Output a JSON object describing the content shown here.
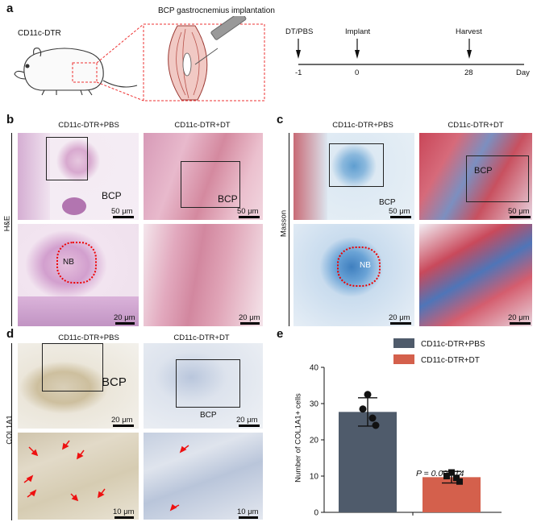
{
  "panel_a": {
    "letter": "a",
    "mouse_label": "CD11c-DTR",
    "implant_title": "BCP gastrocnemius implantation",
    "timeline": {
      "events": [
        {
          "label": "DT/PBS",
          "tick": "-1"
        },
        {
          "label": "Implant",
          "tick": "0"
        },
        {
          "label": "Harvest",
          "tick": "28"
        }
      ],
      "unit": "Day"
    }
  },
  "panel_b": {
    "letter": "b",
    "row_label": "H&E",
    "col1": "CD11c-DTR+PBS",
    "col2": "CD11c-DTR+DT",
    "bcp1": "BCP",
    "bcp2": "BCP",
    "nb": "NB",
    "scale_top": "50 μm",
    "scale_bottom": "20 μm"
  },
  "panel_c": {
    "letter": "c",
    "row_label": "Masson",
    "col1": "CD11c-DTR+PBS",
    "col2": "CD11c-DTR+DT",
    "bcp1": "BCP",
    "bcp2": "BCP",
    "nb": "NB",
    "scale_top": "50 μm",
    "scale_bottom": "20 μm"
  },
  "panel_d": {
    "letter": "d",
    "row_label": "COL1A1",
    "col1": "CD11c-DTR+PBS",
    "col2": "CD11c-DTR+DT",
    "bcp1": "BCP",
    "bcp2": "BCP",
    "scale_top": "20 μm",
    "scale_bottom": "10 μm"
  },
  "panel_e": {
    "letter": "e",
    "p_value": "P = 0.000 14"
  },
  "chart_data": {
    "type": "bar",
    "categories": [
      "CD11c-DTR+PBS",
      "CD11c-DTR+DT"
    ],
    "series": [
      {
        "name": "CD11c-DTR+PBS",
        "value": 27.7,
        "sd": 3.9,
        "points": [
          32.5,
          28.5,
          26.0,
          24.0
        ],
        "color": "#4f5b6b"
      },
      {
        "name": "CD11c-DTR+DT",
        "value": 9.7,
        "sd": 1.6,
        "points": [
          11.0,
          10.0,
          9.5,
          8.5
        ],
        "color": "#d4604c"
      }
    ],
    "ylabel": "Number of COL1A1+ cells",
    "ylim": [
      0,
      40
    ],
    "yticks": [
      "0",
      "10",
      "20",
      "30",
      "40"
    ],
    "legend_position": "top"
  }
}
